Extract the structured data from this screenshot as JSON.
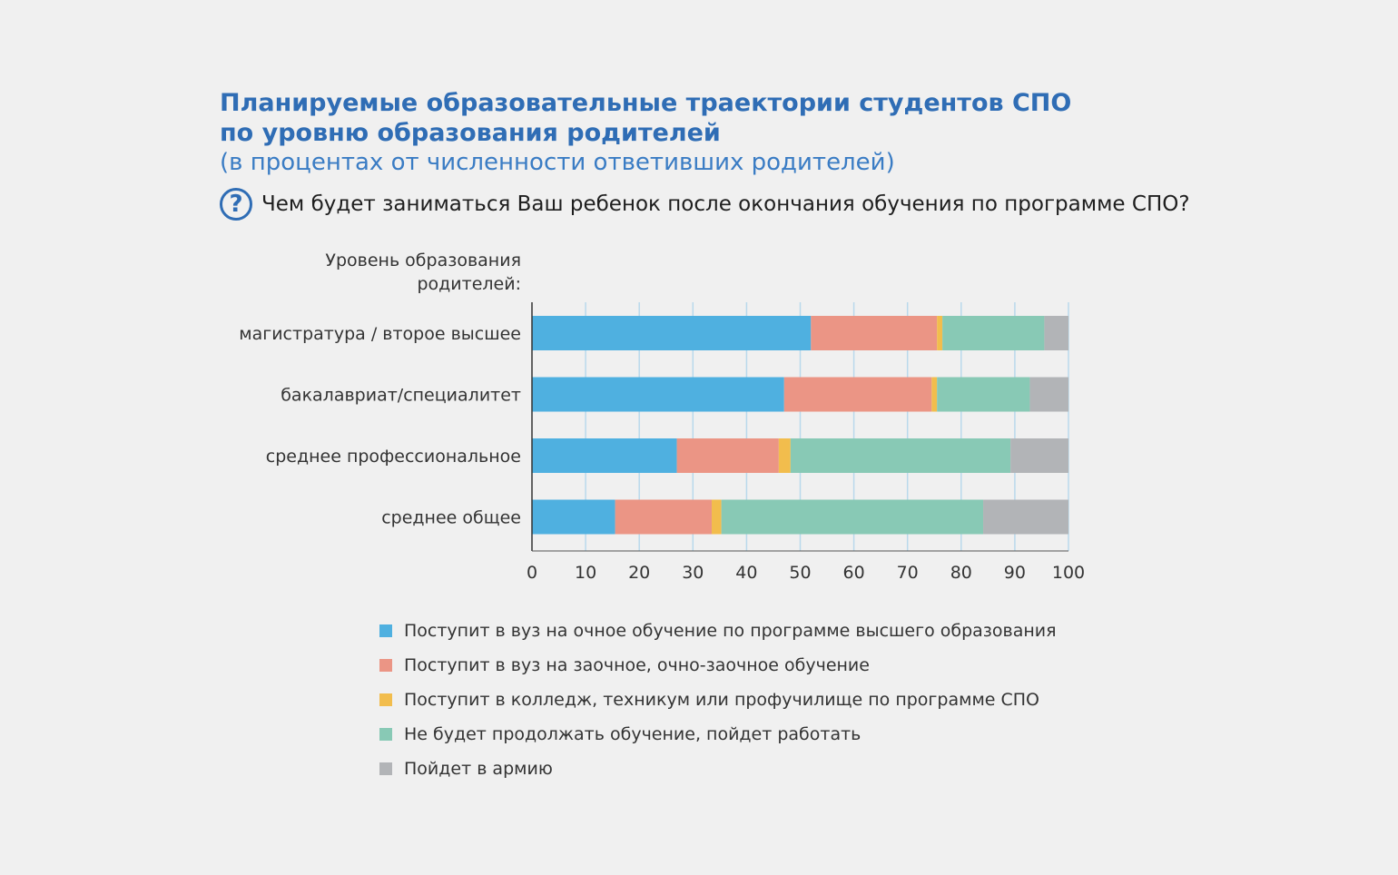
{
  "header": {
    "title_line1": "Планируемые образовательные траектории студентов СПО",
    "title_line2": "по уровню образования родителей",
    "subtitle": "(в процентах от численности ответивших родителей)",
    "question_icon": "?",
    "question": "Чем будет заниматься Ваш ребенок после окончания обучения по программе СПО?",
    "level_header_line1": "Уровень образования",
    "level_header_line2": "родителей:"
  },
  "chart_data": {
    "type": "bar",
    "orientation": "horizontal",
    "stacked": true,
    "title": "Планируемые образовательные траектории студентов СПО по уровню образования родителей",
    "subtitle": "(в процентах от численности ответивших родителей)",
    "ylabel": "Уровень образования родителей:",
    "categories": [
      "магистратура / второе высшее",
      "бакалавриат/специалитет",
      "среднее профессиональное",
      "среднее общее"
    ],
    "series": [
      {
        "name": "Поступит в вуз на очное обучение по программе высшего образования",
        "color": "#4fb0e0",
        "values": [
          52,
          47,
          27,
          15.5
        ]
      },
      {
        "name": "Поступит в вуз на заочное, очно-заочное обучение",
        "color": "#eb9585",
        "values": [
          23.5,
          27.5,
          19,
          18
        ]
      },
      {
        "name": "Поступит в колледж, техникум или профучилище по программе СПО",
        "color": "#f2bd4d",
        "values": [
          1,
          1,
          2.2,
          1.8
        ]
      },
      {
        "name": "Не будет продолжать обучение, пойдет работать",
        "color": "#88c9b5",
        "values": [
          19,
          17.3,
          41,
          48.8
        ]
      },
      {
        "name": "Пойдет в армию",
        "color": "#b2b4b7",
        "values": [
          4.5,
          7.2,
          10.8,
          15.9
        ]
      }
    ],
    "xlim": [
      0,
      100
    ],
    "xticks": [
      0,
      10,
      20,
      30,
      40,
      50,
      60,
      70,
      80,
      90,
      100
    ],
    "grid": true,
    "legend_position": "bottom"
  }
}
